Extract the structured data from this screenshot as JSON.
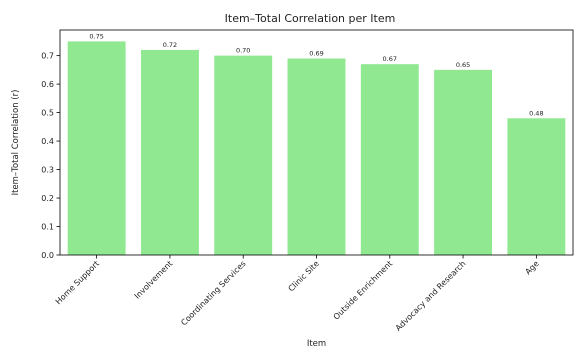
{
  "chart_data": {
    "type": "bar",
    "title": "Item–Total Correlation per Item",
    "xlabel": "Item",
    "ylabel": "Item–Total Correlation (r)",
    "categories": [
      "Home Support",
      "Involvement",
      "Coordinating Services",
      "Clinic Site",
      "Outside Enrichment",
      "Advocacy and Research",
      "Age"
    ],
    "values": [
      0.75,
      0.72,
      0.7,
      0.69,
      0.67,
      0.65,
      0.48
    ],
    "value_labels": [
      "0.75",
      "0.72",
      "0.70",
      "0.69",
      "0.67",
      "0.65",
      "0.48"
    ],
    "yticks": [
      "0.0",
      "0.1",
      "0.2",
      "0.3",
      "0.4",
      "0.5",
      "0.6",
      "0.7"
    ],
    "ylim": [
      0,
      0.79
    ],
    "grid": false,
    "bar_color": "#90e890"
  }
}
